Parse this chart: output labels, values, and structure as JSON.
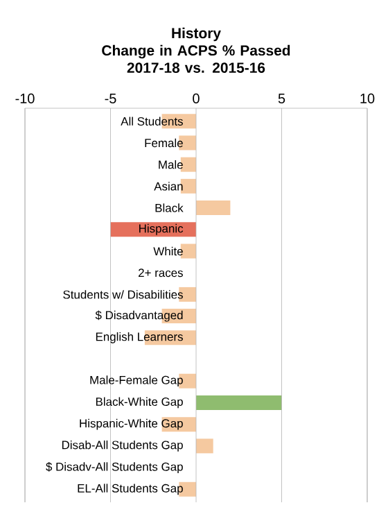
{
  "chart_data": {
    "type": "bar",
    "orientation": "horizontal",
    "title": "History",
    "subtitle": "Change in ACPS % Passed 2017-18 vs. 2015-16",
    "categories": [
      "All Students",
      "Female",
      "Male",
      "Asian",
      "Black",
      "Hispanic",
      "White",
      "2+ races",
      "Students w/ Disabilities",
      "$ Disadvantaged",
      "English Learners",
      null,
      "Male-Female Gap",
      "Black-White Gap",
      "Hispanic-White Gap",
      "Disab-All Students Gap",
      "$ Disadv-All Students Gap",
      "EL-All Students Gap"
    ],
    "values": [
      -2,
      -1,
      -0.9,
      -0.9,
      2,
      -5,
      -0.9,
      0,
      -1,
      -2,
      -3,
      null,
      -1,
      5,
      -2,
      1,
      0,
      -1
    ],
    "colors": [
      "#f5c9a0",
      "#f5c9a0",
      "#f5c9a0",
      "#f5c9a0",
      "#f5c9a0",
      "#e5705c",
      "#f5c9a0",
      "#f5c9a0",
      "#f5c9a0",
      "#f5c9a0",
      "#f5c9a0",
      "#f5c9a0",
      "#f5c9a0",
      "#8fbc6f",
      "#f5c9a0",
      "#f5c9a0",
      "#f5c9a0",
      "#f5c9a0"
    ],
    "xlim": [
      -10,
      10
    ],
    "xticks": [
      -10,
      -5,
      0,
      5,
      10
    ],
    "grid": "x"
  }
}
